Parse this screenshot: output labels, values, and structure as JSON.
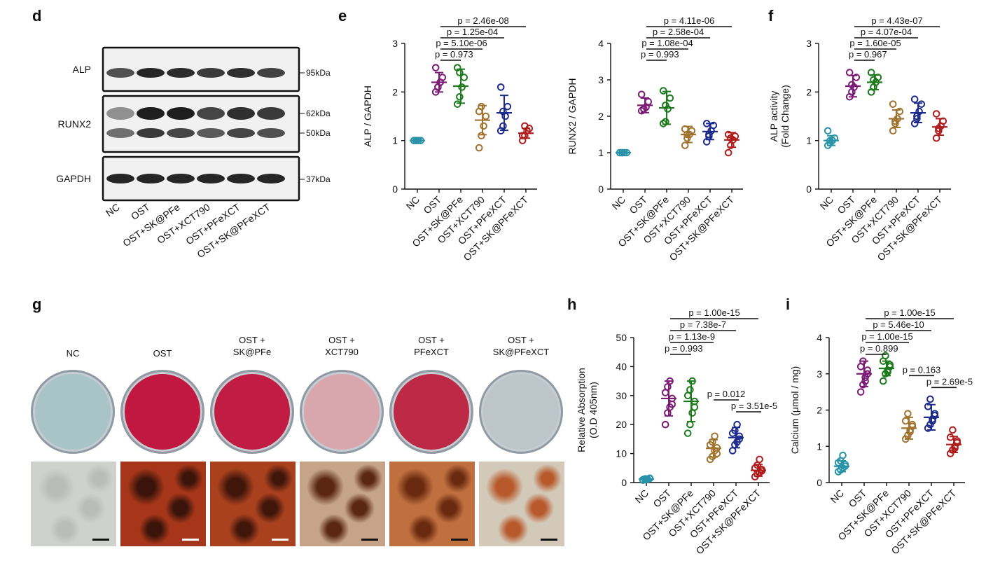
{
  "panel_d": {
    "letter": "d",
    "rows": [
      {
        "protein": "ALP",
        "markers": [
          "95kDa"
        ]
      },
      {
        "protein": "RUNX2",
        "markers": [
          "62kDa",
          "50kDa"
        ]
      },
      {
        "protein": "GAPDH",
        "markers": [
          "37kDa"
        ]
      }
    ],
    "lanes": [
      "NC",
      "OST",
      "OST+SK@PFe",
      "OST+XCT790",
      "OST+PFeXCT",
      "OST+SK@PFeXCT"
    ]
  },
  "panel_g": {
    "letter": "g",
    "plates": [
      {
        "label": [
          "NC"
        ],
        "color": "#a9c4c7"
      },
      {
        "label": [
          "OST"
        ],
        "color": "#c01840"
      },
      {
        "label": [
          "OST +",
          "SK@PFe"
        ],
        "color": "#c11d44"
      },
      {
        "label": [
          "OST +",
          "XCT790"
        ],
        "color": "#d9a6ae"
      },
      {
        "label": [
          "OST +",
          "PFeXCT"
        ],
        "color": "#bd2a45"
      },
      {
        "label": [
          "OST +",
          "SK@PFeXCT"
        ],
        "color": "#bcc5c9"
      }
    ]
  },
  "chart_data": [
    {
      "type": "scatter",
      "id": "e1",
      "letter": "e",
      "ylabel": "ALP / GAPDH",
      "ylim": [
        0,
        3
      ],
      "yticks": [
        "0",
        "1",
        "2",
        "3"
      ],
      "categories": [
        "NC",
        "OST",
        "OST+SK@PFe",
        "OST+XCT790",
        "OST+PFeXCT",
        "OST+SK@PFeXCT"
      ],
      "colors": [
        "#2893a8",
        "#7a1a74",
        "#1c7a1c",
        "#a0732e",
        "#1c2a8c",
        "#b01c1c"
      ],
      "means": [
        1.0,
        2.2,
        2.12,
        1.42,
        1.57,
        1.15
      ],
      "sds": [
        0.02,
        0.2,
        0.35,
        0.3,
        0.36,
        0.1
      ],
      "points": [
        [
          1,
          1,
          1,
          1,
          1,
          1
        ],
        [
          2.0,
          2.1,
          2.2,
          2.3,
          2.5,
          2.1
        ],
        [
          1.75,
          1.9,
          2.1,
          2.3,
          2.5,
          2.4
        ],
        [
          0.85,
          1.1,
          1.3,
          1.5,
          1.6,
          1.7
        ],
        [
          1.2,
          1.3,
          1.5,
          1.7,
          2.1,
          1.6
        ],
        [
          1.0,
          1.1,
          1.2,
          1.25,
          1.1,
          1.3
        ]
      ],
      "brackets": [
        {
          "text": "p = 0.973",
          "from": 1,
          "to": 2
        },
        {
          "text": "p = 5.10e-06",
          "from": 1,
          "to": 3
        },
        {
          "text": "p = 1.25e-04",
          "from": 1,
          "to": 4
        },
        {
          "text": "p = 2.46e-08",
          "from": 1,
          "to": 5
        }
      ]
    },
    {
      "type": "scatter",
      "id": "e2",
      "letter": "",
      "ylabel": "RUNX2 / GAPDH",
      "ylim": [
        0,
        4
      ],
      "yticks": [
        "0",
        "1",
        "2",
        "3",
        "4"
      ],
      "categories": [
        "NC",
        "OST",
        "OST+SK@PFe",
        "OST+XCT790",
        "OST+PFeXCT",
        "OST+SK@PFeXCT"
      ],
      "colors": [
        "#2893a8",
        "#7a1a74",
        "#1c7a1c",
        "#a0732e",
        "#1c2a8c",
        "#b01c1c"
      ],
      "means": [
        1.0,
        2.3,
        2.23,
        1.5,
        1.58,
        1.35
      ],
      "sds": [
        0.02,
        0.2,
        0.45,
        0.22,
        0.22,
        0.2
      ],
      "points": [
        [
          1,
          1,
          1,
          1,
          1,
          1
        ],
        [
          2.15,
          2.2,
          2.25,
          2.4,
          2.6,
          2.2
        ],
        [
          1.8,
          1.85,
          2.2,
          2.5,
          2.7,
          2.3
        ],
        [
          1.2,
          1.4,
          1.5,
          1.6,
          1.65,
          1.5
        ],
        [
          1.3,
          1.45,
          1.6,
          1.75,
          1.8,
          1.5
        ],
        [
          1.0,
          1.2,
          1.35,
          1.45,
          1.5,
          1.4
        ]
      ],
      "brackets": [
        {
          "text": "p = 0.993",
          "from": 1,
          "to": 2
        },
        {
          "text": "p = 1.08e-04",
          "from": 1,
          "to": 3
        },
        {
          "text": "p = 2.58e-04",
          "from": 1,
          "to": 4
        },
        {
          "text": "p = 4.11e-06",
          "from": 1,
          "to": 5
        }
      ]
    },
    {
      "type": "scatter",
      "id": "f",
      "letter": "f",
      "ylabel": "ALP activity",
      "ylabel2": "(Fold Change)",
      "ylim": [
        0,
        3
      ],
      "yticks": [
        "0",
        "1",
        "2",
        "3"
      ],
      "categories": [
        "NC",
        "OST",
        "OST+SK@PFe",
        "OST+XCT790",
        "OST+PFeXCT",
        "OST+SK@PFeXCT"
      ],
      "colors": [
        "#2893a8",
        "#7a1a74",
        "#1c7a1c",
        "#a0732e",
        "#1c2a8c",
        "#b01c1c"
      ],
      "means": [
        1.0,
        2.12,
        2.2,
        1.45,
        1.57,
        1.28
      ],
      "sds": [
        0.1,
        0.22,
        0.15,
        0.18,
        0.2,
        0.17
      ],
      "points": [
        [
          0.9,
          0.95,
          1.0,
          1.05,
          1.2,
          1.0
        ],
        [
          1.9,
          2.0,
          2.1,
          2.3,
          2.4,
          2.15
        ],
        [
          2.0,
          2.1,
          2.2,
          2.3,
          2.4,
          2.25
        ],
        [
          1.2,
          1.35,
          1.45,
          1.6,
          1.75,
          1.4
        ],
        [
          1.35,
          1.5,
          1.6,
          1.75,
          1.85,
          1.45
        ],
        [
          1.05,
          1.2,
          1.3,
          1.4,
          1.55,
          1.25
        ]
      ],
      "brackets": [
        {
          "text": "p = 0.967",
          "from": 1,
          "to": 2
        },
        {
          "text": "p = 1.60e-05",
          "from": 1,
          "to": 3
        },
        {
          "text": "p = 4.07e-04",
          "from": 1,
          "to": 4
        },
        {
          "text": "p = 4.43e-07",
          "from": 1,
          "to": 5
        }
      ]
    },
    {
      "type": "scatter",
      "id": "h",
      "letter": "h",
      "ylabel": "Relative Absorption",
      "ylabel2": "(O.D 405nm)",
      "ylim": [
        0,
        50
      ],
      "yticks": [
        "0",
        "10",
        "20",
        "30",
        "40",
        "50"
      ],
      "categories": [
        "NC",
        "OST",
        "OST+SK@PFe",
        "OST+XCT790",
        "OST+PFeXCT",
        "OST+SK@PFeXCT"
      ],
      "colors": [
        "#2893a8",
        "#7a1a74",
        "#1c7a1c",
        "#a0732e",
        "#1c2a8c",
        "#b01c1c"
      ],
      "means": [
        1.2,
        29.0,
        28.0,
        11.8,
        15.5,
        4.2
      ],
      "sds": [
        0.3,
        6.0,
        7.0,
        3.0,
        3.5,
        2.0
      ],
      "points": [
        [
          0.8,
          1.0,
          1.2,
          1.4,
          1.0,
          1.3,
          1.1,
          1.5
        ],
        [
          20,
          24,
          26,
          29,
          31,
          33,
          35,
          27
        ],
        [
          17,
          20,
          24,
          28,
          30,
          32,
          35,
          26
        ],
        [
          8,
          9,
          11,
          12,
          13,
          14,
          16,
          10
        ],
        [
          11,
          13,
          14,
          16,
          17,
          18,
          20,
          15
        ],
        [
          2,
          3,
          3.5,
          4,
          5,
          6,
          8,
          4.5
        ]
      ],
      "brackets": [
        {
          "text": "p = 0.993",
          "from": 1,
          "to": 2
        },
        {
          "text": "p = 1.13e-9",
          "from": 1,
          "to": 3
        },
        {
          "text": "p = 7.38e-7",
          "from": 1,
          "to": 4
        },
        {
          "text": "p = 1.00e-15",
          "from": 1,
          "to": 5
        },
        {
          "text": "p = 0.012",
          "from": 3,
          "to": 4,
          "level": 0
        },
        {
          "text": "p = 3.51e-5",
          "from": 4,
          "to": 5,
          "level": -1
        }
      ]
    },
    {
      "type": "scatter",
      "id": "i",
      "letter": "i",
      "ylabel": "Calcium (μmol / mg)",
      "ylim": [
        0,
        4
      ],
      "yticks": [
        "0",
        "1",
        "2",
        "3",
        "4"
      ],
      "categories": [
        "NC",
        "OST",
        "OST+SK@PFe",
        "OST+XCT790",
        "OST+PFeXCT",
        "OST+SK@PFeXCT"
      ],
      "colors": [
        "#2893a8",
        "#7a1a74",
        "#1c7a1c",
        "#a0732e",
        "#1c2a8c",
        "#b01c1c"
      ],
      "means": [
        0.45,
        3.0,
        3.15,
        1.5,
        1.8,
        1.05
      ],
      "sds": [
        0.15,
        0.35,
        0.2,
        0.3,
        0.35,
        0.22
      ],
      "points": [
        [
          0.3,
          0.35,
          0.4,
          0.5,
          0.55,
          0.6,
          0.75,
          0.45
        ],
        [
          2.5,
          2.7,
          2.9,
          3.0,
          3.2,
          3.35,
          2.8,
          3.1
        ],
        [
          2.8,
          3.0,
          3.1,
          3.2,
          3.35,
          3.5,
          3.05,
          3.25
        ],
        [
          1.2,
          1.3,
          1.45,
          1.55,
          1.7,
          1.9,
          1.4,
          1.6
        ],
        [
          1.5,
          1.6,
          1.75,
          1.9,
          2.1,
          2.3,
          1.7,
          1.85
        ],
        [
          0.8,
          0.9,
          1.0,
          1.1,
          1.25,
          1.45,
          0.95,
          1.15
        ]
      ],
      "brackets": [
        {
          "text": "p = 0.899",
          "from": 1,
          "to": 2
        },
        {
          "text": "p = 1.00e-15",
          "from": 1,
          "to": 3
        },
        {
          "text": "p = 5.46e-10",
          "from": 1,
          "to": 4
        },
        {
          "text": "p = 1.00e-15",
          "from": 1,
          "to": 5
        },
        {
          "text": "p = 0.163",
          "from": 3,
          "to": 4,
          "level": 0
        },
        {
          "text": "p = 2.69e-5",
          "from": 4,
          "to": 5,
          "level": -1
        }
      ]
    }
  ]
}
